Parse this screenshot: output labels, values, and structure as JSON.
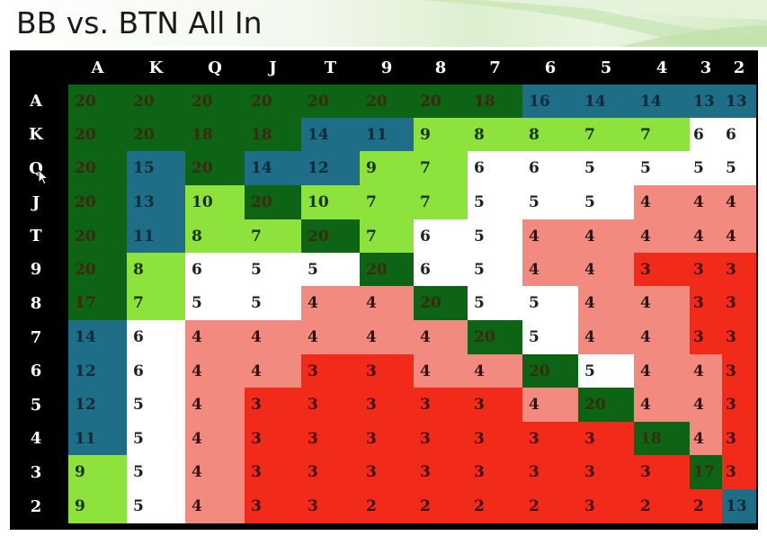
{
  "title": "BB vs. BTN All In",
  "chart_data": {
    "type": "heatmap",
    "x_labels": [
      "A",
      "K",
      "Q",
      "J",
      "T",
      "9",
      "8",
      "7",
      "6",
      "5",
      "4",
      "3",
      "2"
    ],
    "y_labels": [
      "A",
      "K",
      "Q",
      "J",
      "T",
      "9",
      "8",
      "7",
      "6",
      "5",
      "4",
      "3",
      "2"
    ],
    "values": [
      [
        20,
        20,
        20,
        20,
        20,
        20,
        20,
        18,
        16,
        14,
        14,
        13,
        13
      ],
      [
        20,
        20,
        18,
        18,
        14,
        11,
        9,
        8,
        8,
        7,
        7,
        6,
        6
      ],
      [
        20,
        15,
        20,
        14,
        12,
        9,
        7,
        6,
        6,
        5,
        5,
        5,
        5
      ],
      [
        20,
        13,
        10,
        20,
        10,
        7,
        7,
        5,
        5,
        5,
        4,
        4,
        4
      ],
      [
        20,
        11,
        8,
        7,
        20,
        7,
        6,
        5,
        4,
        4,
        4,
        4,
        4
      ],
      [
        20,
        8,
        6,
        5,
        5,
        20,
        6,
        5,
        4,
        4,
        3,
        3,
        3
      ],
      [
        17,
        7,
        5,
        5,
        4,
        4,
        20,
        5,
        5,
        4,
        4,
        3,
        3
      ],
      [
        14,
        6,
        4,
        4,
        4,
        4,
        4,
        20,
        5,
        4,
        4,
        3,
        3
      ],
      [
        12,
        6,
        4,
        4,
        3,
        3,
        4,
        4,
        20,
        5,
        4,
        4,
        3
      ],
      [
        12,
        5,
        4,
        3,
        3,
        3,
        3,
        3,
        4,
        20,
        4,
        4,
        3
      ],
      [
        11,
        5,
        4,
        3,
        3,
        3,
        3,
        3,
        3,
        3,
        18,
        4,
        3
      ],
      [
        9,
        5,
        4,
        3,
        3,
        3,
        3,
        3,
        3,
        3,
        3,
        17,
        3
      ],
      [
        9,
        5,
        4,
        3,
        3,
        2,
        2,
        2,
        2,
        3,
        2,
        2,
        13
      ]
    ],
    "colors": [
      [
        "dkgreen",
        "dkgreen",
        "dkgreen",
        "dkgreen",
        "dkgreen",
        "dkgreen",
        "dkgreen",
        "dkgreen",
        "teal",
        "teal",
        "teal",
        "teal",
        "teal"
      ],
      [
        "dkgreen",
        "dkgreen",
        "dkgreen",
        "dkgreen",
        "teal",
        "teal",
        "lime",
        "lime",
        "lime",
        "lime",
        "lime",
        "white",
        "white"
      ],
      [
        "dkgreen",
        "teal",
        "dkgreen",
        "teal",
        "teal",
        "lime",
        "lime",
        "white",
        "white",
        "white",
        "white",
        "white",
        "white"
      ],
      [
        "dkgreen",
        "teal",
        "lime",
        "dkgreen",
        "lime",
        "lime",
        "lime",
        "white",
        "white",
        "white",
        "pink",
        "pink",
        "pink"
      ],
      [
        "dkgreen",
        "teal",
        "lime",
        "lime",
        "dkgreen",
        "lime",
        "white",
        "white",
        "pink",
        "pink",
        "pink",
        "pink",
        "pink"
      ],
      [
        "dkgreen",
        "lime",
        "white",
        "white",
        "white",
        "dkgreen",
        "white",
        "white",
        "pink",
        "pink",
        "red",
        "red",
        "red"
      ],
      [
        "dkgreen",
        "lime",
        "white",
        "white",
        "pink",
        "pink",
        "dkgreen",
        "white",
        "white",
        "pink",
        "pink",
        "red",
        "red"
      ],
      [
        "teal",
        "white",
        "pink",
        "pink",
        "pink",
        "pink",
        "pink",
        "dkgreen",
        "white",
        "pink",
        "pink",
        "red",
        "red"
      ],
      [
        "teal",
        "white",
        "pink",
        "pink",
        "red",
        "red",
        "pink",
        "pink",
        "dkgreen",
        "white",
        "pink",
        "pink",
        "red"
      ],
      [
        "teal",
        "white",
        "pink",
        "red",
        "red",
        "red",
        "red",
        "red",
        "pink",
        "dkgreen",
        "pink",
        "pink",
        "red"
      ],
      [
        "teal",
        "white",
        "pink",
        "red",
        "red",
        "red",
        "red",
        "red",
        "red",
        "red",
        "dkgreen",
        "pink",
        "red"
      ],
      [
        "lime",
        "white",
        "pink",
        "red",
        "red",
        "red",
        "red",
        "red",
        "red",
        "red",
        "red",
        "dkgreen",
        "red"
      ],
      [
        "lime",
        "white",
        "pink",
        "red",
        "red",
        "red",
        "red",
        "red",
        "red",
        "red",
        "red",
        "red",
        "teal"
      ]
    ]
  }
}
